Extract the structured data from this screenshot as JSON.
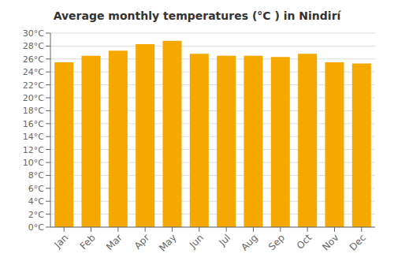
{
  "chart_data": {
    "type": "bar",
    "title": "Average monthly temperatures (°C ) in Nindirí",
    "categories": [
      "Jan",
      "Feb",
      "Mar",
      "Apr",
      "May",
      "Jun",
      "Jul",
      "Aug",
      "Sep",
      "Oct",
      "Nov",
      "Dec"
    ],
    "values": [
      25.5,
      26.5,
      27.3,
      28.3,
      28.8,
      26.8,
      26.5,
      26.5,
      26.3,
      26.8,
      25.5,
      25.3
    ],
    "color": "#F5A800",
    "ylim": [
      0,
      30
    ],
    "yticks": [
      {
        "value": 0,
        "label": "0°C"
      },
      {
        "value": 2,
        "label": "2°C"
      },
      {
        "value": 4,
        "label": "4°C"
      },
      {
        "value": 6,
        "label": "6°C"
      },
      {
        "value": 8,
        "label": "8°C"
      },
      {
        "value": 10,
        "label": "10°C"
      },
      {
        "value": 12,
        "label": "12°C"
      },
      {
        "value": 14,
        "label": "14°C"
      },
      {
        "value": 16,
        "label": "16°C"
      },
      {
        "value": 18,
        "label": "18°C"
      },
      {
        "value": 20,
        "label": "20°C"
      },
      {
        "value": 22,
        "label": "22°C"
      },
      {
        "value": 24,
        "label": "24°C"
      },
      {
        "value": 26,
        "label": "26°C"
      },
      {
        "value": 28,
        "label": "28°C"
      },
      {
        "value": 30,
        "label": "30°C"
      }
    ],
    "grid": true
  }
}
